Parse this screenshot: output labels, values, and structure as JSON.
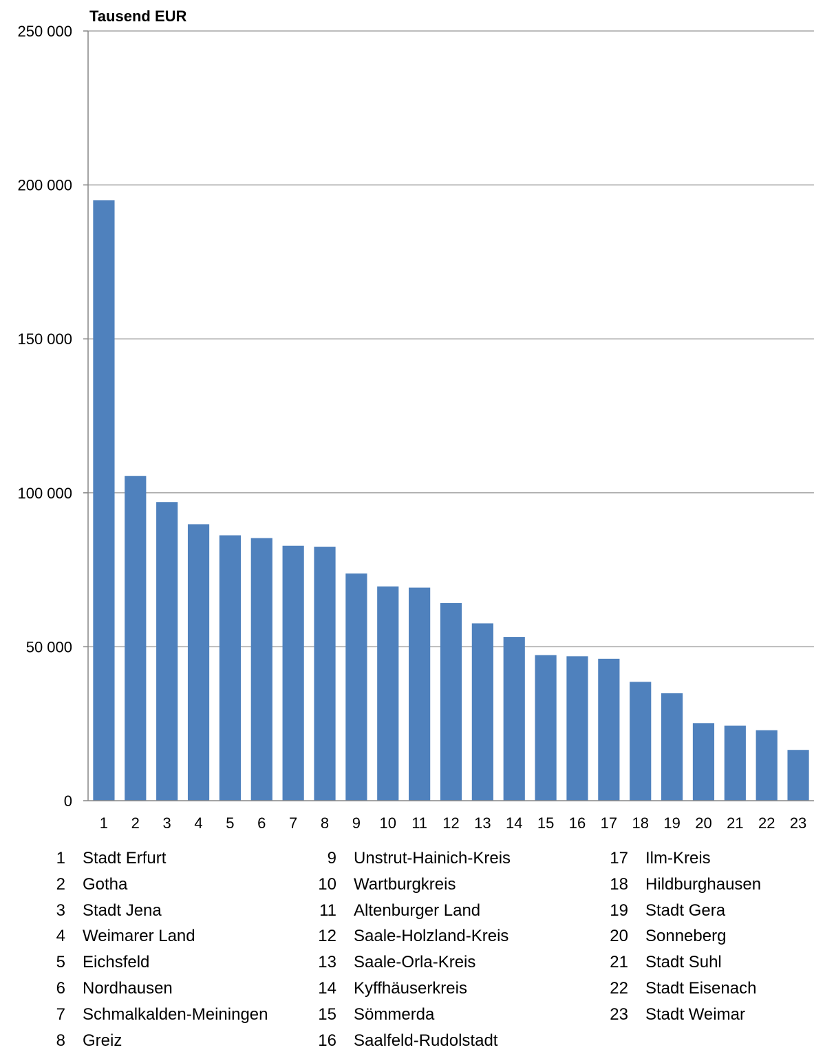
{
  "chart_data": {
    "type": "bar",
    "unit_label": "Tausend EUR",
    "ylim": [
      0,
      250000
    ],
    "yticks": [
      "0",
      "50 000",
      "100 000",
      "150 000",
      "200 000",
      "250 000"
    ],
    "ytick_values": [
      0,
      50000,
      100000,
      150000,
      200000,
      250000
    ],
    "grid": true,
    "bar_color": "#4F81BD",
    "categories": [
      "1",
      "2",
      "3",
      "4",
      "5",
      "6",
      "7",
      "8",
      "9",
      "10",
      "11",
      "12",
      "13",
      "14",
      "15",
      "16",
      "17",
      "18",
      "19",
      "20",
      "21",
      "22",
      "23"
    ],
    "values": [
      195000,
      105500,
      97000,
      89800,
      86200,
      85300,
      82800,
      82500,
      73800,
      69600,
      69200,
      64200,
      57600,
      53200,
      47300,
      46900,
      46100,
      38600,
      34900,
      25200,
      24400,
      22900,
      16500
    ]
  },
  "legend": [
    {
      "num": "1",
      "label": "Stadt Erfurt"
    },
    {
      "num": "2",
      "label": "Gotha"
    },
    {
      "num": "3",
      "label": "Stadt Jena"
    },
    {
      "num": "4",
      "label": "Weimarer Land"
    },
    {
      "num": "5",
      "label": "Eichsfeld"
    },
    {
      "num": "6",
      "label": "Nordhausen"
    },
    {
      "num": "7",
      "label": "Schmalkalden-Meiningen"
    },
    {
      "num": "8",
      "label": "Greiz"
    },
    {
      "num": "9",
      "label": "Unstrut-Hainich-Kreis"
    },
    {
      "num": "10",
      "label": "Wartburgkreis"
    },
    {
      "num": "11",
      "label": "Altenburger Land"
    },
    {
      "num": "12",
      "label": "Saale-Holzland-Kreis"
    },
    {
      "num": "13",
      "label": "Saale-Orla-Kreis"
    },
    {
      "num": "14",
      "label": "Kyffhäuserkreis"
    },
    {
      "num": "15",
      "label": "Sömmerda"
    },
    {
      "num": "16",
      "label": "Saalfeld-Rudolstadt"
    },
    {
      "num": "17",
      "label": "Ilm-Kreis"
    },
    {
      "num": "18",
      "label": "Hildburghausen"
    },
    {
      "num": "19",
      "label": "Stadt Gera"
    },
    {
      "num": "20",
      "label": "Sonneberg"
    },
    {
      "num": "21",
      "label": "Stadt Suhl"
    },
    {
      "num": "22",
      "label": "Stadt Eisenach"
    },
    {
      "num": "23",
      "label": "Stadt  Weimar"
    }
  ]
}
